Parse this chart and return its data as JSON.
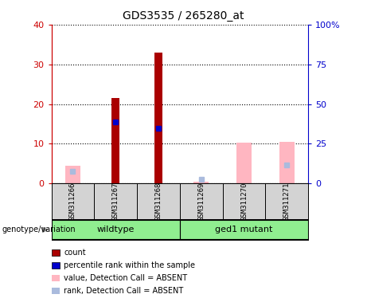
{
  "title": "GDS3535 / 265280_at",
  "samples": [
    "GSM311266",
    "GSM311267",
    "GSM311268",
    "GSM311269",
    "GSM311270",
    "GSM311271"
  ],
  "groups": [
    {
      "name": "wildtype",
      "indices": [
        0,
        1,
        2
      ],
      "color": "#90ee90"
    },
    {
      "name": "ged1 mutant",
      "indices": [
        3,
        4,
        5
      ],
      "color": "#90ee90"
    }
  ],
  "count_values": [
    null,
    21.5,
    33.0,
    null,
    null,
    null
  ],
  "percentile_values": [
    null,
    15.5,
    14.0,
    null,
    null,
    null
  ],
  "absent_value_values": [
    4.5,
    null,
    null,
    0.5,
    10.3,
    10.5
  ],
  "absent_rank_values": [
    7.5,
    null,
    null,
    2.5,
    null,
    11.5
  ],
  "left_ylim": [
    0,
    40
  ],
  "right_ylim": [
    0,
    100
  ],
  "left_yticks": [
    0,
    10,
    20,
    30,
    40
  ],
  "right_yticks": [
    0,
    25,
    50,
    75,
    100
  ],
  "left_ytick_labels": [
    "0",
    "10",
    "20",
    "30",
    "40"
  ],
  "right_ytick_labels": [
    "0",
    "25",
    "50",
    "75",
    "100%"
  ],
  "left_axis_color": "#cc0000",
  "right_axis_color": "#0000cc",
  "count_color": "#aa0000",
  "percentile_color": "#0000cc",
  "absent_value_color": "#ffb6c1",
  "absent_rank_color": "#aabbdd",
  "genotype_label": "genotype/variation",
  "legend_items": [
    {
      "label": "count",
      "color": "#aa0000"
    },
    {
      "label": "percentile rank within the sample",
      "color": "#0000cc"
    },
    {
      "label": "value, Detection Call = ABSENT",
      "color": "#ffb6c1"
    },
    {
      "label": "rank, Detection Call = ABSENT",
      "color": "#aabbdd"
    }
  ],
  "sample_box_color": "#d3d3d3",
  "bar_width": 0.3
}
